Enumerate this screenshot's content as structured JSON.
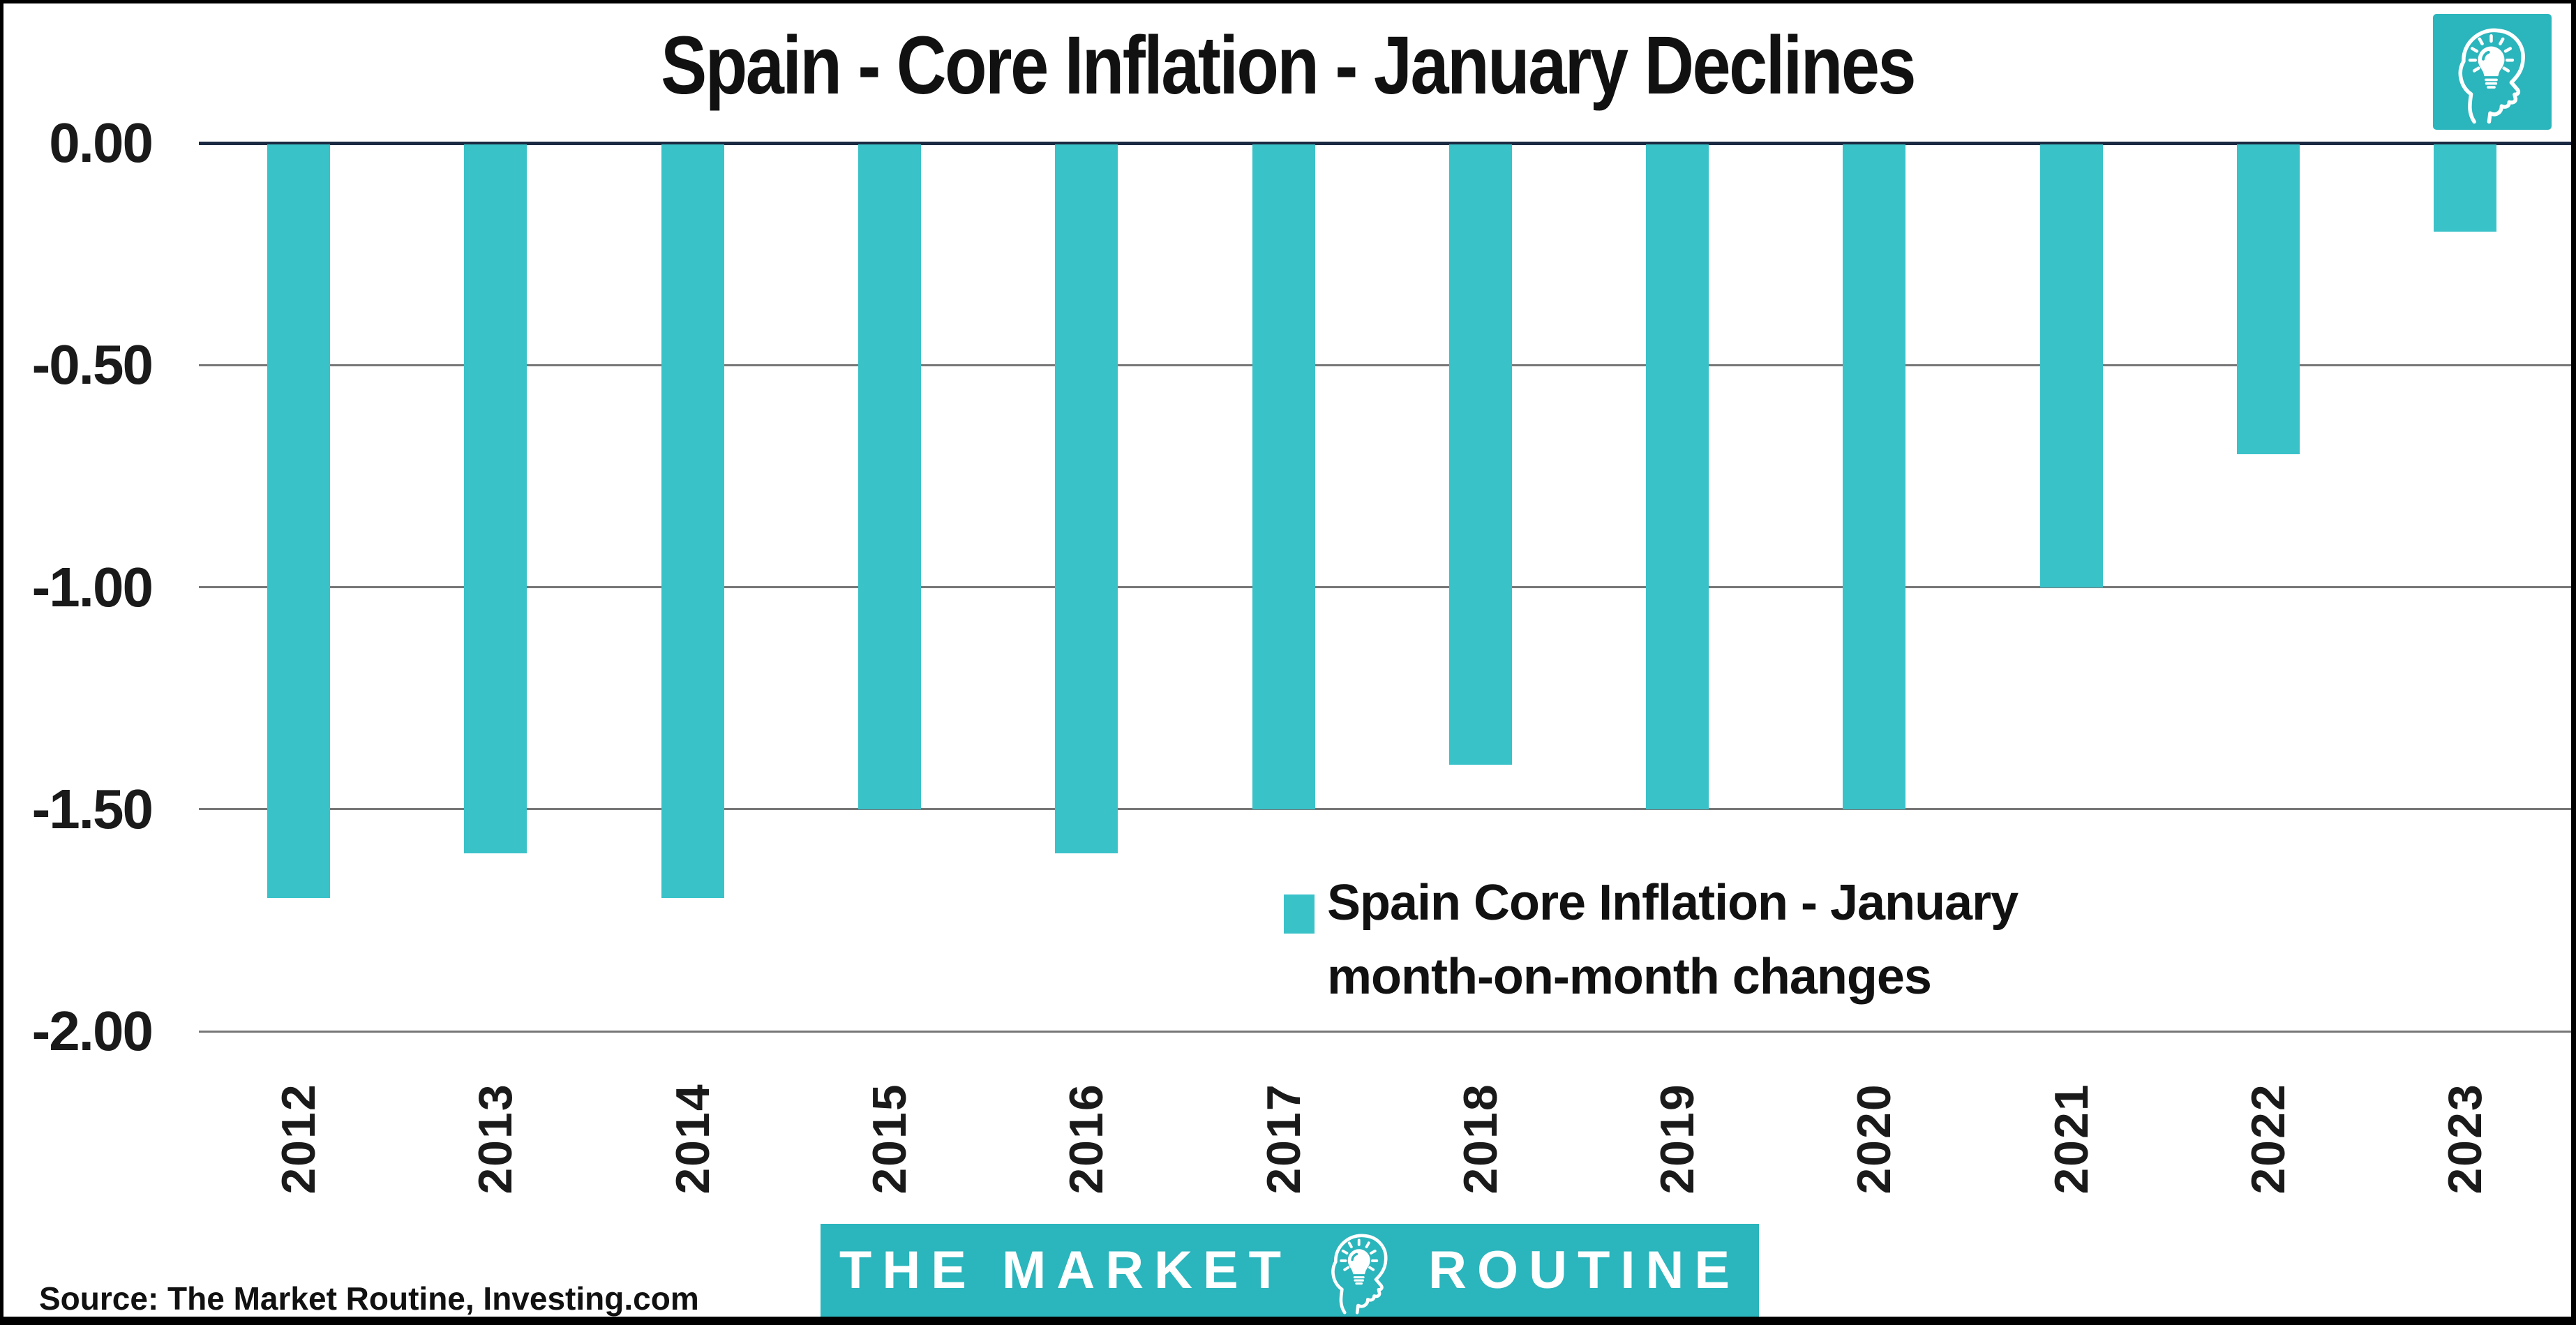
{
  "title": "Spain - Core Inflation - January Declines",
  "y_axis": {
    "tick_labels": [
      "0.00",
      "-0.50",
      "-1.00",
      "-1.50",
      "-2.00"
    ]
  },
  "legend": {
    "line1": "Spain Core Inflation - January",
    "line2": "month-on-month changes",
    "marker_color": "#3AC2C9"
  },
  "source": "Source: The Market Routine, Investing.com",
  "banner": {
    "left_text": "THE MARKET",
    "right_text": "ROUTINE",
    "bg_color": "#2BB5BC"
  },
  "icons": {
    "corner": "head-lightbulb-icon",
    "banner": "head-lightbulb-icon"
  },
  "colors": {
    "bar": "#3AC2C9",
    "banner_teal": "#2BB5BC",
    "zero_axis": "#1B2A42",
    "gridline": "#777777",
    "text": "#111111",
    "frame": "#000000"
  },
  "chart_data": {
    "type": "bar",
    "title": "Spain - Core Inflation - January Declines",
    "categories": [
      "2012",
      "2013",
      "2014",
      "2015",
      "2016",
      "2017",
      "2018",
      "2019",
      "2020",
      "2021",
      "2022",
      "2023"
    ],
    "values": [
      -1.7,
      -1.6,
      -1.7,
      -1.5,
      -1.6,
      -1.5,
      -1.4,
      -1.5,
      -1.5,
      -1.0,
      -0.7,
      -0.2
    ],
    "xlabel": "",
    "ylabel": "",
    "ylim": [
      -2.0,
      0.0
    ],
    "yticks": [
      0.0,
      -0.5,
      -1.0,
      -1.5,
      -2.0
    ],
    "legend": "Spain Core Inflation - January month-on-month changes",
    "legend_position": "inside lower right",
    "grid": "horizontal gridlines",
    "bar_color": "#3AC2C9"
  }
}
